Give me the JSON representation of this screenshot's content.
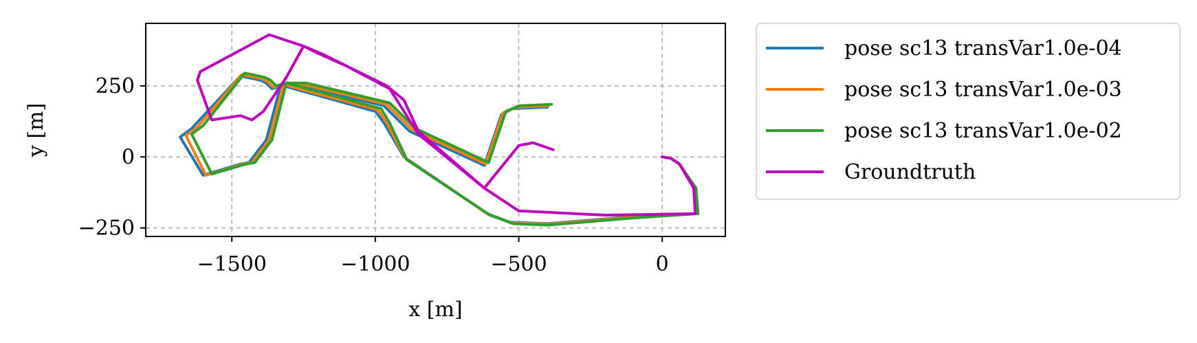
{
  "chart_data": {
    "type": "line",
    "title": "",
    "xlabel": "x [m]",
    "ylabel": "y [m]",
    "xlim": [
      -1800,
      220
    ],
    "ylim": [
      -280,
      470
    ],
    "xticks": [
      -1500,
      -1000,
      -500,
      0
    ],
    "xtick_labels": [
      "−1500",
      "−1000",
      "−500",
      "0"
    ],
    "yticks": [
      -250,
      0,
      250
    ],
    "ytick_labels": [
      "−250",
      "0",
      "250"
    ],
    "grid": true,
    "grid_style": "dashed",
    "legend_position": "outside-right-top",
    "series": [
      {
        "name": "pose sc13 transVar1.0e-04",
        "color": "#1f77b4",
        "points": [
          [
            0,
            0
          ],
          [
            30,
            -5
          ],
          [
            60,
            -25
          ],
          [
            110,
            -110
          ],
          [
            115,
            -200
          ],
          [
            -100,
            -210
          ],
          [
            -400,
            -235
          ],
          [
            -530,
            -230
          ],
          [
            -610,
            -200
          ],
          [
            -900,
            0
          ],
          [
            -970,
            120
          ],
          [
            -1000,
            160
          ],
          [
            -1320,
            250
          ],
          [
            -1360,
            240
          ],
          [
            -1380,
            260
          ],
          [
            -1400,
            270
          ],
          [
            -1470,
            285
          ],
          [
            -1640,
            100
          ],
          [
            -1680,
            70
          ],
          [
            -1600,
            -65
          ],
          [
            -1470,
            -25
          ],
          [
            -1440,
            -20
          ],
          [
            -1380,
            60
          ],
          [
            -1330,
            250
          ],
          [
            -1260,
            250
          ],
          [
            -970,
            180
          ],
          [
            -880,
            90
          ],
          [
            -620,
            -30
          ],
          [
            -560,
            150
          ],
          [
            -520,
            170
          ],
          [
            -400,
            175
          ]
        ]
      },
      {
        "name": "pose sc13 transVar1.0e-03",
        "color": "#ff7f0e",
        "points": [
          [
            0,
            0
          ],
          [
            30,
            -5
          ],
          [
            60,
            -25
          ],
          [
            115,
            -110
          ],
          [
            120,
            -200
          ],
          [
            -100,
            -212
          ],
          [
            -400,
            -237
          ],
          [
            -525,
            -232
          ],
          [
            -605,
            -203
          ],
          [
            -895,
            -5
          ],
          [
            -960,
            120
          ],
          [
            -990,
            165
          ],
          [
            -1320,
            255
          ],
          [
            -1355,
            245
          ],
          [
            -1375,
            265
          ],
          [
            -1395,
            275
          ],
          [
            -1465,
            290
          ],
          [
            -1620,
            105
          ],
          [
            -1660,
            75
          ],
          [
            -1590,
            -65
          ],
          [
            -1460,
            -25
          ],
          [
            -1430,
            -20
          ],
          [
            -1370,
            60
          ],
          [
            -1320,
            255
          ],
          [
            -1250,
            255
          ],
          [
            -960,
            185
          ],
          [
            -870,
            95
          ],
          [
            -615,
            -25
          ],
          [
            -555,
            155
          ],
          [
            -510,
            175
          ],
          [
            -395,
            180
          ]
        ]
      },
      {
        "name": "pose sc13 transVar1.0e-02",
        "color": "#2ca02c",
        "points": [
          [
            0,
            0
          ],
          [
            30,
            -5
          ],
          [
            60,
            -25
          ],
          [
            118,
            -110
          ],
          [
            125,
            -200
          ],
          [
            -100,
            -215
          ],
          [
            -400,
            -240
          ],
          [
            -520,
            -235
          ],
          [
            -600,
            -205
          ],
          [
            -890,
            -10
          ],
          [
            -950,
            120
          ],
          [
            -980,
            170
          ],
          [
            -1310,
            260
          ],
          [
            -1345,
            250
          ],
          [
            -1365,
            270
          ],
          [
            -1385,
            280
          ],
          [
            -1455,
            295
          ],
          [
            -1600,
            110
          ],
          [
            -1640,
            80
          ],
          [
            -1570,
            -60
          ],
          [
            -1450,
            -25
          ],
          [
            -1420,
            -20
          ],
          [
            -1360,
            60
          ],
          [
            -1310,
            260
          ],
          [
            -1240,
            260
          ],
          [
            -950,
            190
          ],
          [
            -860,
            100
          ],
          [
            -605,
            -20
          ],
          [
            -545,
            160
          ],
          [
            -500,
            180
          ],
          [
            -385,
            185
          ]
        ]
      },
      {
        "name": "Groundtruth",
        "color": "#bf00bf",
        "points": [
          [
            0,
            0
          ],
          [
            30,
            -5
          ],
          [
            60,
            -25
          ],
          [
            110,
            -110
          ],
          [
            115,
            -200
          ],
          [
            -200,
            -205
          ],
          [
            -500,
            -190
          ],
          [
            -620,
            -110
          ],
          [
            -850,
            90
          ],
          [
            -900,
            200
          ],
          [
            -960,
            250
          ],
          [
            -1100,
            320
          ],
          [
            -1180,
            360
          ],
          [
            -1250,
            390
          ],
          [
            -1370,
            430
          ],
          [
            -1610,
            300
          ],
          [
            -1620,
            270
          ],
          [
            -1570,
            130
          ],
          [
            -1470,
            145
          ],
          [
            -1430,
            130
          ],
          [
            -1390,
            160
          ],
          [
            -1310,
            280
          ],
          [
            -1250,
            390
          ],
          [
            -1230,
            380
          ],
          [
            -1200,
            365
          ],
          [
            -1100,
            320
          ],
          [
            -950,
            240
          ],
          [
            -850,
            80
          ],
          [
            -620,
            -110
          ],
          [
            -500,
            40
          ],
          [
            -450,
            50
          ],
          [
            -380,
            25
          ]
        ]
      }
    ]
  }
}
